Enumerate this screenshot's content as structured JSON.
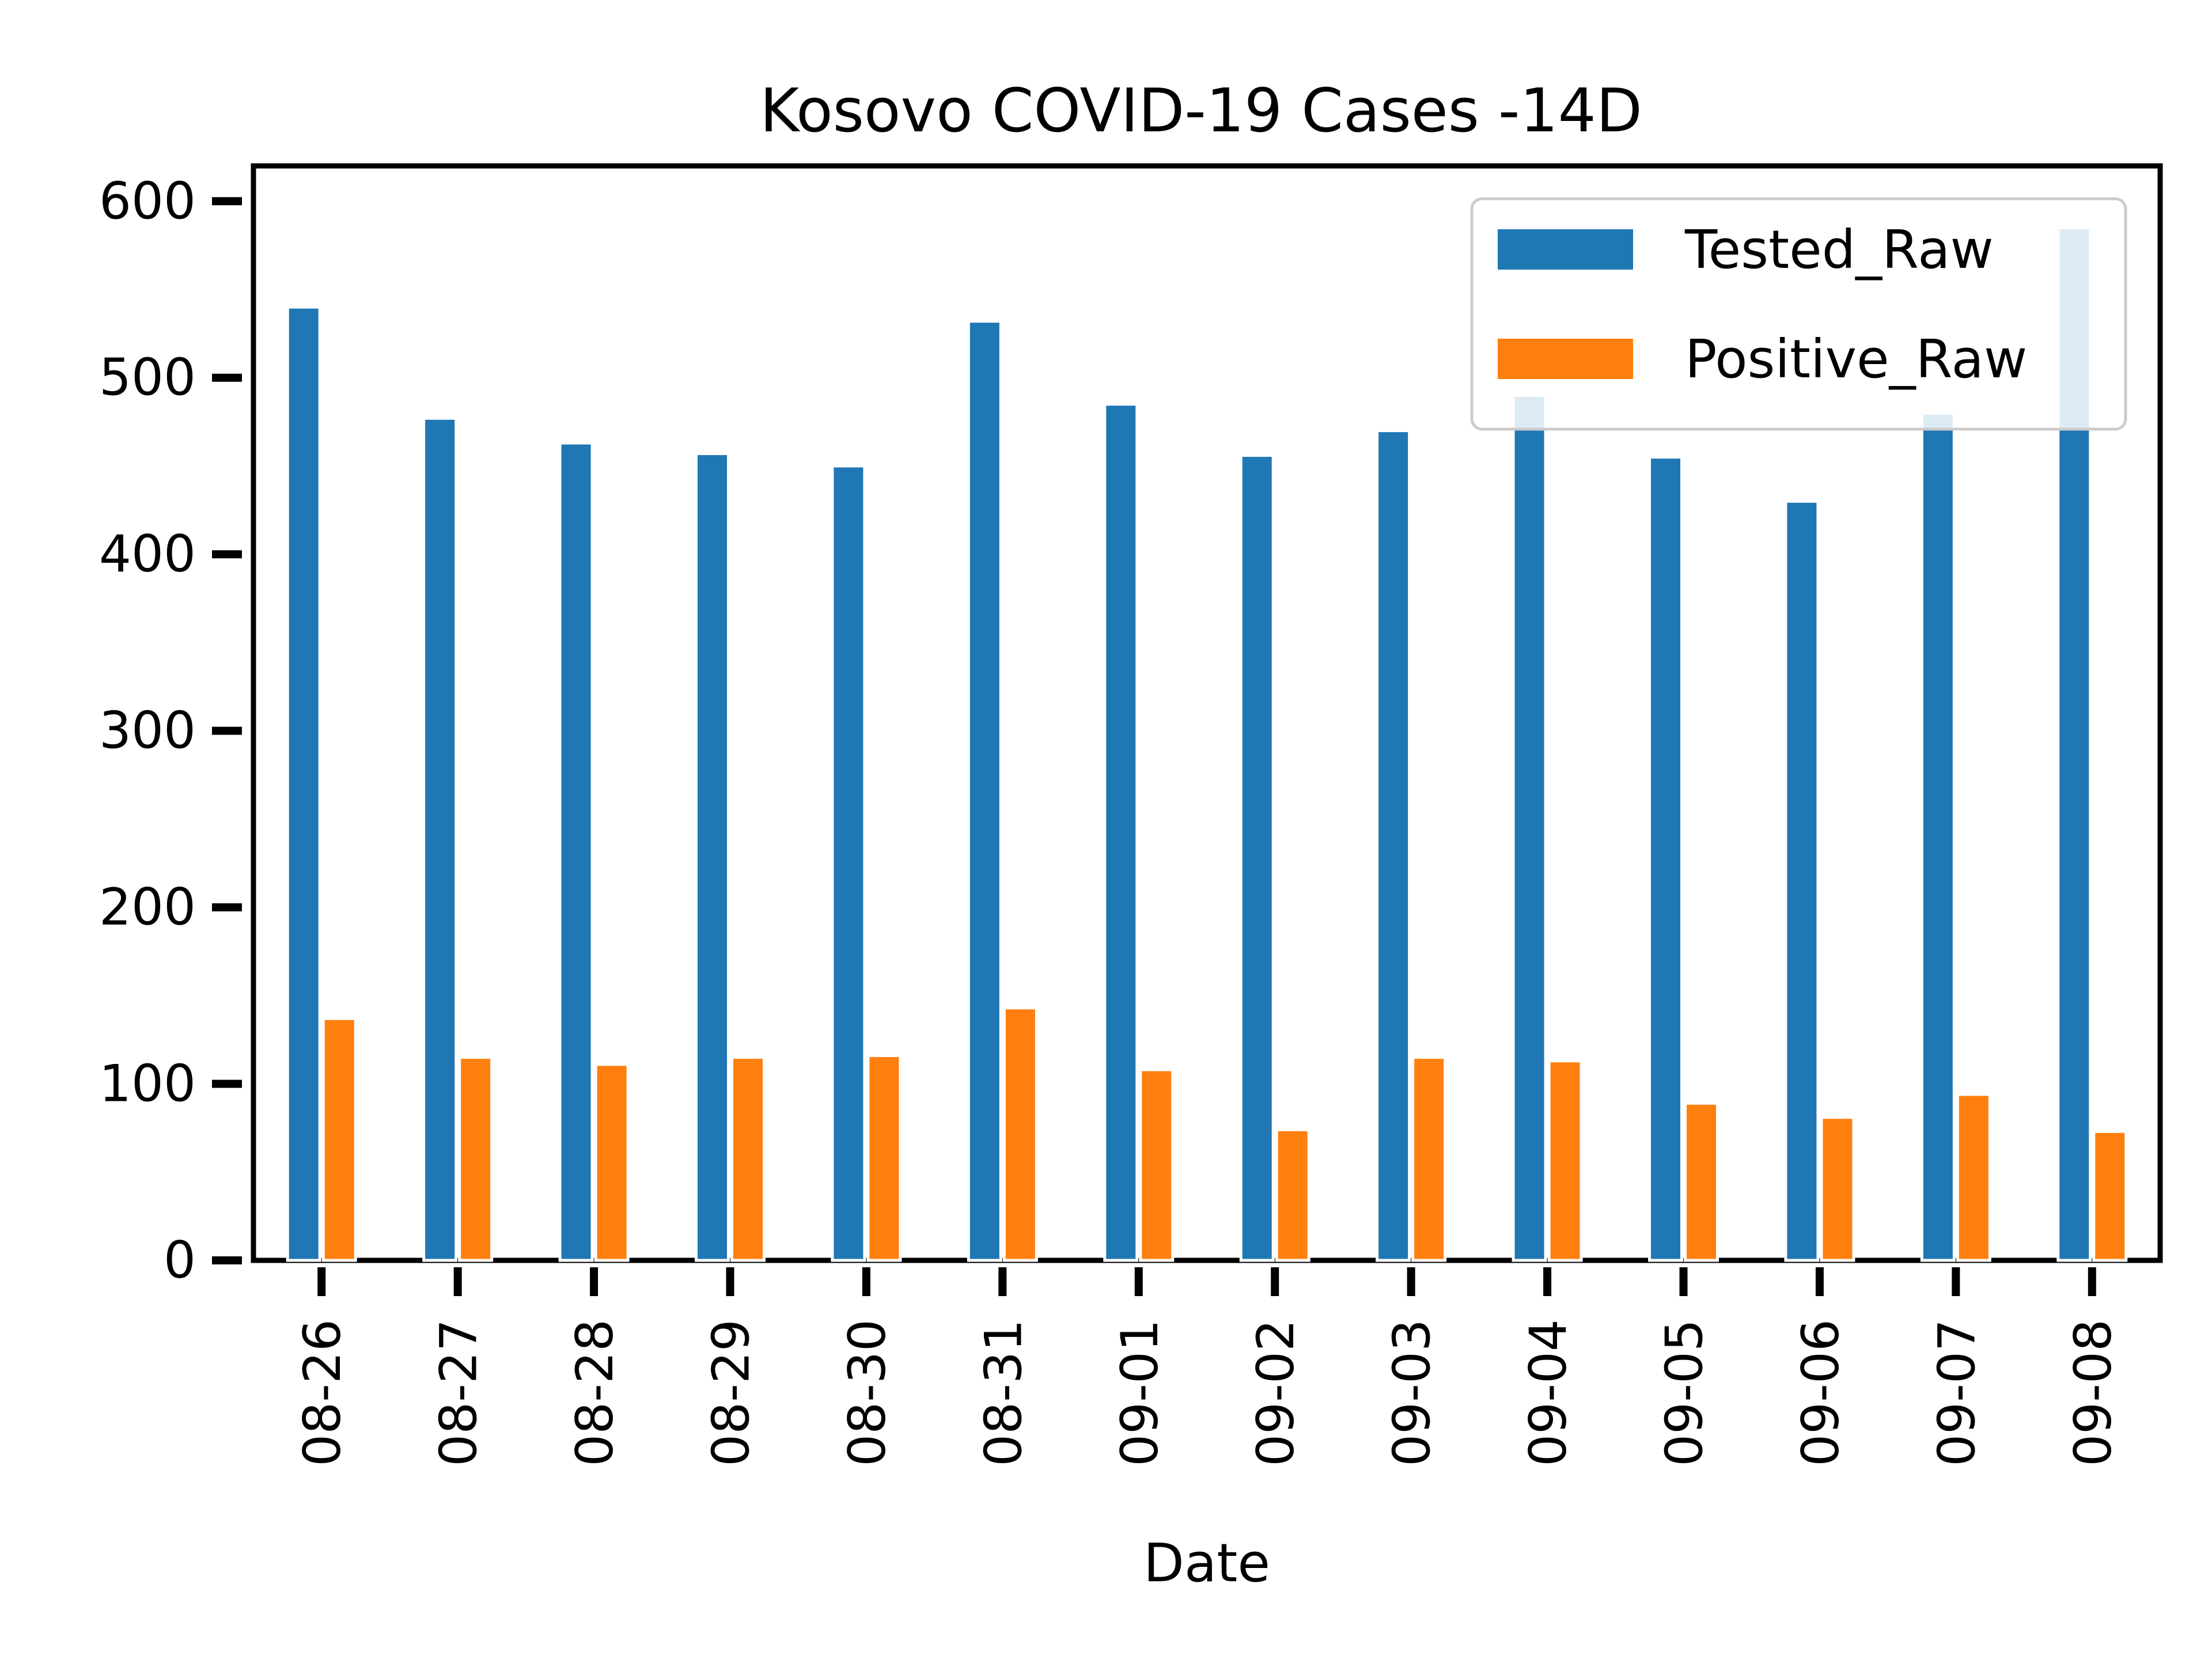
{
  "chart_data": {
    "type": "bar",
    "title": "Kosovo COVID-19 Cases -14D",
    "xlabel": "Date",
    "ylabel": "",
    "ylim": [
      0,
      620
    ],
    "yticks": [
      0,
      100,
      200,
      300,
      400,
      500,
      600
    ],
    "categories": [
      "08-26",
      "08-27",
      "08-28",
      "08-29",
      "08-30",
      "08-31",
      "09-01",
      "09-02",
      "09-03",
      "09-04",
      "09-05",
      "09-06",
      "09-07",
      "09-08"
    ],
    "series": [
      {
        "name": "Tested_Raw",
        "color": "#1f77b4",
        "values": [
          540,
          477,
          463,
          457,
          450,
          532,
          485,
          456,
          470,
          490,
          455,
          430,
          480,
          585
        ]
      },
      {
        "name": "Positive_Raw",
        "color": "#ff7f0e",
        "values": [
          137,
          115,
          111,
          115,
          116,
          143,
          108,
          74,
          115,
          113,
          89,
          81,
          94,
          73
        ]
      }
    ],
    "legend_position": "top-right",
    "grid": false
  }
}
